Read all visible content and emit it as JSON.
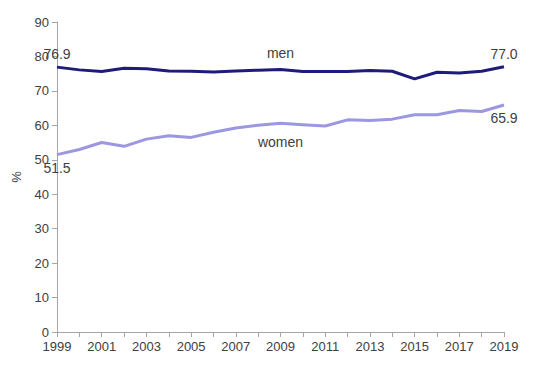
{
  "chart_data": {
    "type": "line",
    "y_label": "%",
    "categories": [
      "1999",
      null,
      "2001",
      null,
      "2003",
      null,
      "2005",
      null,
      "2007",
      null,
      "2009",
      null,
      "2011",
      null,
      "2013",
      null,
      "2015",
      null,
      "2017",
      null,
      "2019"
    ],
    "series": [
      {
        "name": "men",
        "color": "#1f1b78",
        "values": [
          76.9,
          76.1,
          75.6,
          76.6,
          76.4,
          75.8,
          75.7,
          75.5,
          75.8,
          76.0,
          76.2,
          75.6,
          75.6,
          75.6,
          75.9,
          75.7,
          73.5,
          75.4,
          75.2,
          75.7,
          77.0
        ]
      },
      {
        "name": "women",
        "color": "#9b97e0",
        "values": [
          51.5,
          53.0,
          55.0,
          53.9,
          56.0,
          57.0,
          56.5,
          58.0,
          59.2,
          60.0,
          60.6,
          60.2,
          59.8,
          61.6,
          61.4,
          61.8,
          63.1,
          63.1,
          64.3,
          64.0,
          65.9
        ]
      }
    ],
    "annotations": [
      {
        "series": "men",
        "index": 0,
        "text": "76.9"
      },
      {
        "series": "men",
        "index": 20,
        "text": "77.0"
      },
      {
        "series": "women",
        "index": 0,
        "text": "51.5"
      },
      {
        "series": "women",
        "index": 20,
        "text": "65.9"
      }
    ],
    "ylim": [
      0,
      90
    ],
    "yticks": [
      0,
      10,
      20,
      30,
      40,
      50,
      60,
      70,
      80,
      90
    ],
    "grid": false
  }
}
